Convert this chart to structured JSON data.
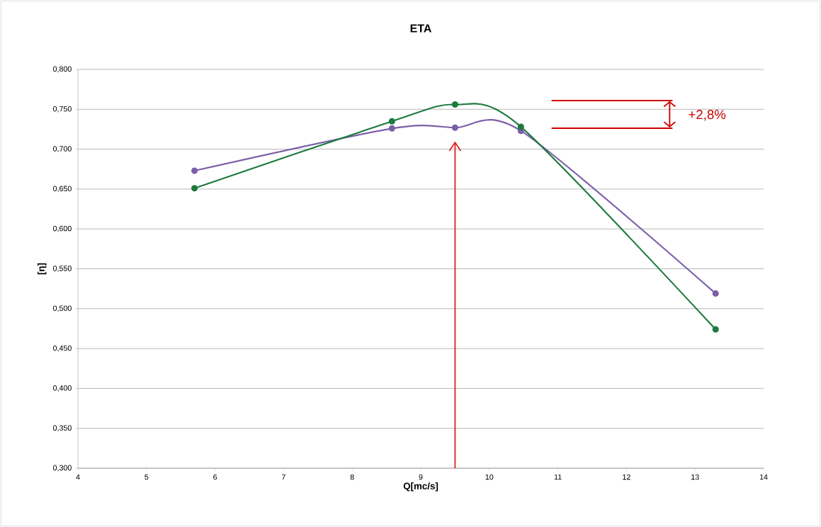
{
  "chart_data": {
    "type": "line",
    "title": "ETA",
    "xlabel": "Q[mc/s]",
    "ylabel": "[η]",
    "x": [
      5.7,
      8.58,
      9.5,
      10.46,
      13.3
    ],
    "series": [
      {
        "color": "#7b5ea7",
        "values": [
          0.673,
          0.726,
          0.727,
          0.723,
          0.519
        ]
      },
      {
        "color": "#1b7a3c",
        "values": [
          0.651,
          0.735,
          0.756,
          0.728,
          0.474
        ]
      }
    ],
    "xlim": [
      4,
      14
    ],
    "xticks": [
      4,
      5,
      6,
      7,
      8,
      9,
      10,
      11,
      12,
      13,
      14
    ],
    "ylim": [
      0.3,
      0.8
    ],
    "yticks": [
      {
        "value": 0.3,
        "label": "0,300"
      },
      {
        "value": 0.35,
        "label": "0,350"
      },
      {
        "value": 0.4,
        "label": "0,400"
      },
      {
        "value": 0.45,
        "label": "0,450"
      },
      {
        "value": 0.5,
        "label": "0,500"
      },
      {
        "value": 0.55,
        "label": "0,550"
      },
      {
        "value": 0.6,
        "label": "0,600"
      },
      {
        "value": 0.65,
        "label": "0,650"
      },
      {
        "value": 0.7,
        "label": "0,700"
      },
      {
        "value": 0.75,
        "label": "0,750"
      },
      {
        "value": 0.8,
        "label": "0,800"
      }
    ],
    "grid": "y",
    "marker": "circle",
    "line_style": "solid",
    "ref_lines": [
      {
        "axis": "x",
        "value": 9.5,
        "color": "#e0282a"
      }
    ],
    "annotations": [
      "+2,8%"
    ]
  }
}
